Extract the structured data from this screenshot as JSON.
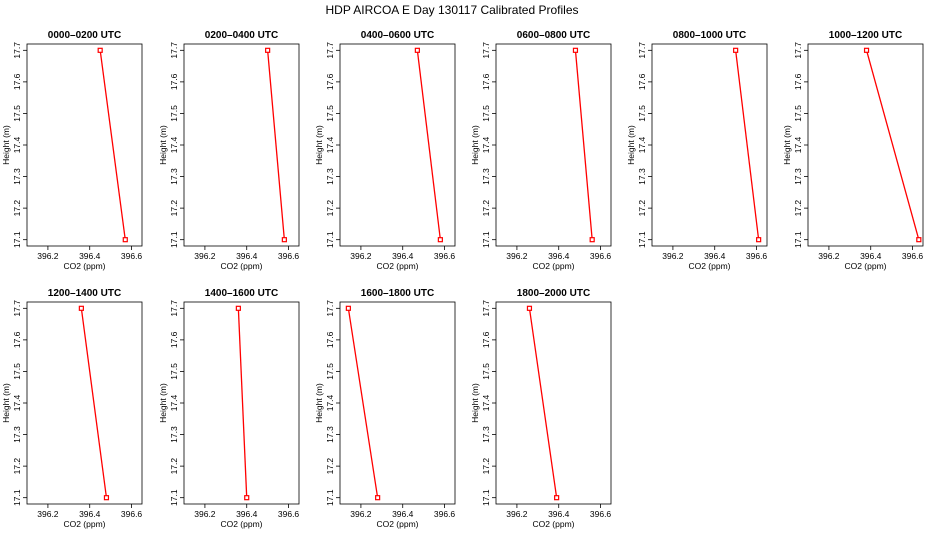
{
  "title": "HDP AIRCOA E  Day 130117  Calibrated Profiles",
  "colors": {
    "series": "#ff0000",
    "axes": "#000000",
    "background": "#ffffff"
  },
  "chart_data": [
    {
      "type": "line",
      "title": "0000–0200 UTC",
      "xlabel": "CO2 (ppm)",
      "ylabel": "Height (m)",
      "xlim": [
        396.1,
        396.65
      ],
      "ylim": [
        17.08,
        17.72
      ],
      "xticks": [
        "396.2",
        "396.4",
        "396.6"
      ],
      "yticks": [
        "17.1",
        "17.2",
        "17.3",
        "17.4",
        "17.5",
        "17.6",
        "17.7"
      ],
      "x": [
        396.45,
        396.57
      ],
      "y": [
        17.7,
        17.1
      ],
      "grid": false
    },
    {
      "type": "line",
      "title": "0200–0400 UTC",
      "xlabel": "CO2 (ppm)",
      "ylabel": "Height (m)",
      "xlim": [
        396.1,
        396.65
      ],
      "ylim": [
        17.08,
        17.72
      ],
      "xticks": [
        "396.2",
        "396.4",
        "396.6"
      ],
      "yticks": [
        "17.1",
        "17.2",
        "17.3",
        "17.4",
        "17.5",
        "17.6",
        "17.7"
      ],
      "x": [
        396.5,
        396.58
      ],
      "y": [
        17.7,
        17.1
      ],
      "grid": false
    },
    {
      "type": "line",
      "title": "0400–0600 UTC",
      "xlabel": "CO2 (ppm)",
      "ylabel": "Height (m)",
      "xlim": [
        396.1,
        396.65
      ],
      "ylim": [
        17.08,
        17.72
      ],
      "xticks": [
        "396.2",
        "396.4",
        "396.6"
      ],
      "yticks": [
        "17.1",
        "17.2",
        "17.3",
        "17.4",
        "17.5",
        "17.6",
        "17.7"
      ],
      "x": [
        396.47,
        396.58
      ],
      "y": [
        17.7,
        17.1
      ],
      "grid": false
    },
    {
      "type": "line",
      "title": "0600–0800 UTC",
      "xlabel": "CO2 (ppm)",
      "ylabel": "Height (m)",
      "xlim": [
        396.1,
        396.65
      ],
      "ylim": [
        17.08,
        17.72
      ],
      "xticks": [
        "396.2",
        "396.4",
        "396.6"
      ],
      "yticks": [
        "17.1",
        "17.2",
        "17.3",
        "17.4",
        "17.5",
        "17.6",
        "17.7"
      ],
      "x": [
        396.48,
        396.56
      ],
      "y": [
        17.7,
        17.1
      ],
      "grid": false
    },
    {
      "type": "line",
      "title": "0800–1000 UTC",
      "xlabel": "CO2 (ppm)",
      "ylabel": "Height (m)",
      "xlim": [
        396.1,
        396.65
      ],
      "ylim": [
        17.08,
        17.72
      ],
      "xticks": [
        "396.2",
        "396.4",
        "396.6"
      ],
      "yticks": [
        "17.1",
        "17.2",
        "17.3",
        "17.4",
        "17.5",
        "17.6",
        "17.7"
      ],
      "x": [
        396.5,
        396.61
      ],
      "y": [
        17.7,
        17.1
      ],
      "grid": false
    },
    {
      "type": "line",
      "title": "1000–1200 UTC",
      "xlabel": "CO2 (ppm)",
      "ylabel": "Height (m)",
      "xlim": [
        396.1,
        396.65
      ],
      "ylim": [
        17.08,
        17.72
      ],
      "xticks": [
        "396.2",
        "396.4",
        "396.6"
      ],
      "yticks": [
        "17.1",
        "17.2",
        "17.3",
        "17.4",
        "17.5",
        "17.6",
        "17.7"
      ],
      "x": [
        396.38,
        396.63
      ],
      "y": [
        17.7,
        17.1
      ],
      "grid": false
    },
    {
      "type": "line",
      "title": "1200–1400 UTC",
      "xlabel": "CO2 (ppm)",
      "ylabel": "Height (m)",
      "xlim": [
        396.1,
        396.65
      ],
      "ylim": [
        17.08,
        17.72
      ],
      "xticks": [
        "396.2",
        "396.4",
        "396.6"
      ],
      "yticks": [
        "17.1",
        "17.2",
        "17.3",
        "17.4",
        "17.5",
        "17.6",
        "17.7"
      ],
      "x": [
        396.36,
        396.48
      ],
      "y": [
        17.7,
        17.1
      ],
      "grid": false
    },
    {
      "type": "line",
      "title": "1400–1600 UTC",
      "xlabel": "CO2 (ppm)",
      "ylabel": "Height (m)",
      "xlim": [
        396.1,
        396.65
      ],
      "ylim": [
        17.08,
        17.72
      ],
      "xticks": [
        "396.2",
        "396.4",
        "396.6"
      ],
      "yticks": [
        "17.1",
        "17.2",
        "17.3",
        "17.4",
        "17.5",
        "17.6",
        "17.7"
      ],
      "x": [
        396.36,
        396.4
      ],
      "y": [
        17.7,
        17.1
      ],
      "grid": false
    },
    {
      "type": "line",
      "title": "1600–1800 UTC",
      "xlabel": "CO2 (ppm)",
      "ylabel": "Height (m)",
      "xlim": [
        396.1,
        396.65
      ],
      "ylim": [
        17.08,
        17.72
      ],
      "xticks": [
        "396.2",
        "396.4",
        "396.6"
      ],
      "yticks": [
        "17.1",
        "17.2",
        "17.3",
        "17.4",
        "17.5",
        "17.6",
        "17.7"
      ],
      "x": [
        396.14,
        396.28
      ],
      "y": [
        17.7,
        17.1
      ],
      "grid": false
    },
    {
      "type": "line",
      "title": "1800–2000 UTC",
      "xlabel": "CO2 (ppm)",
      "ylabel": "Height (m)",
      "xlim": [
        396.1,
        396.65
      ],
      "ylim": [
        17.08,
        17.72
      ],
      "xticks": [
        "396.2",
        "396.4",
        "396.6"
      ],
      "yticks": [
        "17.1",
        "17.2",
        "17.3",
        "17.4",
        "17.5",
        "17.6",
        "17.7"
      ],
      "x": [
        396.26,
        396.39
      ],
      "y": [
        17.7,
        17.1
      ],
      "grid": false
    }
  ]
}
